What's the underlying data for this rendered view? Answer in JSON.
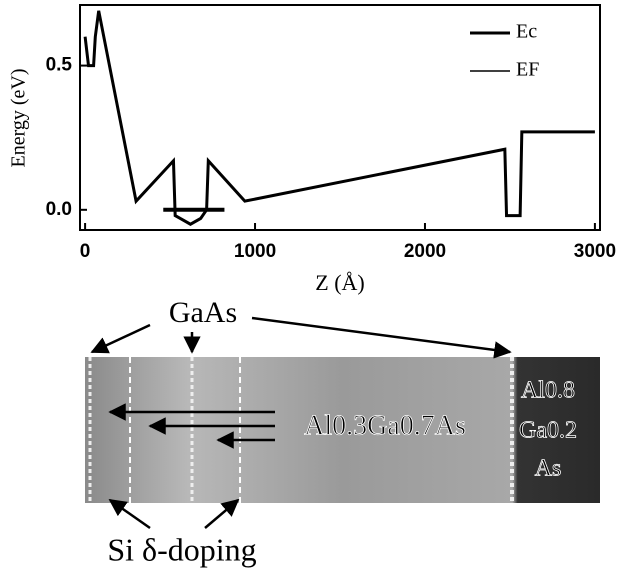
{
  "chart_data": {
    "type": "line",
    "x_label": "Z (Å)",
    "y_label": "Energy (eV)",
    "xlim": [
      -30,
      3030
    ],
    "ylim": [
      -0.07,
      0.71
    ],
    "xticks": [
      0,
      1000,
      2000,
      3000
    ],
    "yticks": [
      {
        "value": 0,
        "label": "0.0"
      },
      {
        "value": 0.5,
        "label": "0.5"
      }
    ],
    "legend": "upper right",
    "series": [
      {
        "name": "Ec",
        "color": "#000000",
        "x": [
          0,
          20,
          50,
          60,
          80,
          300,
          520,
          530,
          560,
          620,
          680,
          715,
          725,
          940,
          2470,
          2480,
          2560,
          2570,
          3000
        ],
        "values": [
          0.6,
          0.5,
          0.5,
          0.6,
          0.69,
          0.03,
          0.17,
          -0.02,
          -0.03,
          -0.05,
          -0.03,
          0,
          0.17,
          0.03,
          0.21,
          -0.02,
          -0.02,
          0.27,
          0.27
        ]
      },
      {
        "name": "EF",
        "color": "#000000",
        "x": [
          460,
          820
        ],
        "values": [
          0,
          0
        ]
      }
    ]
  },
  "diagram": {
    "labels": [
      "GaAs",
      "Al0.3Ga0.7As",
      "Al0.8",
      "Ga0.2",
      "As",
      "Si δ-doping"
    ]
  }
}
